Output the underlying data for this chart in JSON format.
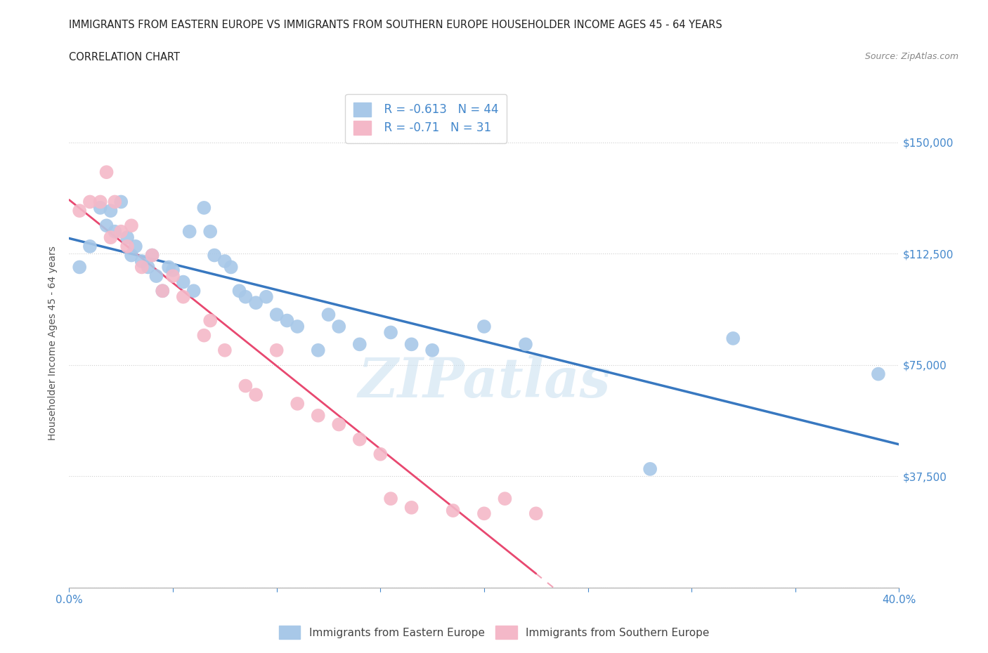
{
  "title_line1": "IMMIGRANTS FROM EASTERN EUROPE VS IMMIGRANTS FROM SOUTHERN EUROPE HOUSEHOLDER INCOME AGES 45 - 64 YEARS",
  "title_line2": "CORRELATION CHART",
  "source_text": "Source: ZipAtlas.com",
  "ylabel": "Householder Income Ages 45 - 64 years",
  "xlim": [
    0.0,
    0.4
  ],
  "ylim": [
    0,
    165000
  ],
  "xticks": [
    0.0,
    0.05,
    0.1,
    0.15,
    0.2,
    0.25,
    0.3,
    0.35,
    0.4
  ],
  "xticklabels": [
    "0.0%",
    "",
    "",
    "",
    "",
    "",
    "",
    "",
    "40.0%"
  ],
  "yticks": [
    0,
    37500,
    75000,
    112500,
    150000
  ],
  "yticklabels": [
    "",
    "$37,500",
    "$75,000",
    "$112,500",
    "$150,000"
  ],
  "grid_color": "#d0d0d0",
  "watermark": "ZIPatlas",
  "blue_color": "#a8c8e8",
  "pink_color": "#f4b8c8",
  "blue_line_color": "#3878c0",
  "pink_line_color": "#e84870",
  "R_blue": -0.613,
  "N_blue": 44,
  "R_pink": -0.71,
  "N_pink": 31,
  "legend_label_blue": "Immigrants from Eastern Europe",
  "legend_label_pink": "Immigrants from Southern Europe",
  "eastern_x": [
    0.005,
    0.01,
    0.015,
    0.018,
    0.02,
    0.022,
    0.025,
    0.028,
    0.03,
    0.032,
    0.035,
    0.038,
    0.04,
    0.042,
    0.045,
    0.048,
    0.05,
    0.055,
    0.058,
    0.06,
    0.065,
    0.068,
    0.07,
    0.075,
    0.078,
    0.082,
    0.085,
    0.09,
    0.095,
    0.1,
    0.105,
    0.11,
    0.12,
    0.125,
    0.13,
    0.14,
    0.155,
    0.165,
    0.175,
    0.2,
    0.22,
    0.28,
    0.32,
    0.39
  ],
  "eastern_y": [
    108000,
    115000,
    128000,
    122000,
    127000,
    120000,
    130000,
    118000,
    112000,
    115000,
    110000,
    108000,
    112000,
    105000,
    100000,
    108000,
    107000,
    103000,
    120000,
    100000,
    128000,
    120000,
    112000,
    110000,
    108000,
    100000,
    98000,
    96000,
    98000,
    92000,
    90000,
    88000,
    80000,
    92000,
    88000,
    82000,
    86000,
    82000,
    80000,
    88000,
    82000,
    40000,
    84000,
    72000
  ],
  "southern_x": [
    0.005,
    0.01,
    0.015,
    0.018,
    0.02,
    0.022,
    0.025,
    0.028,
    0.03,
    0.035,
    0.04,
    0.045,
    0.05,
    0.055,
    0.065,
    0.068,
    0.075,
    0.085,
    0.09,
    0.1,
    0.11,
    0.12,
    0.13,
    0.14,
    0.15,
    0.155,
    0.165,
    0.185,
    0.2,
    0.21,
    0.225
  ],
  "southern_y": [
    127000,
    130000,
    130000,
    140000,
    118000,
    130000,
    120000,
    115000,
    122000,
    108000,
    112000,
    100000,
    105000,
    98000,
    85000,
    90000,
    80000,
    68000,
    65000,
    80000,
    62000,
    58000,
    55000,
    50000,
    45000,
    30000,
    27000,
    26000,
    25000,
    30000,
    25000
  ]
}
